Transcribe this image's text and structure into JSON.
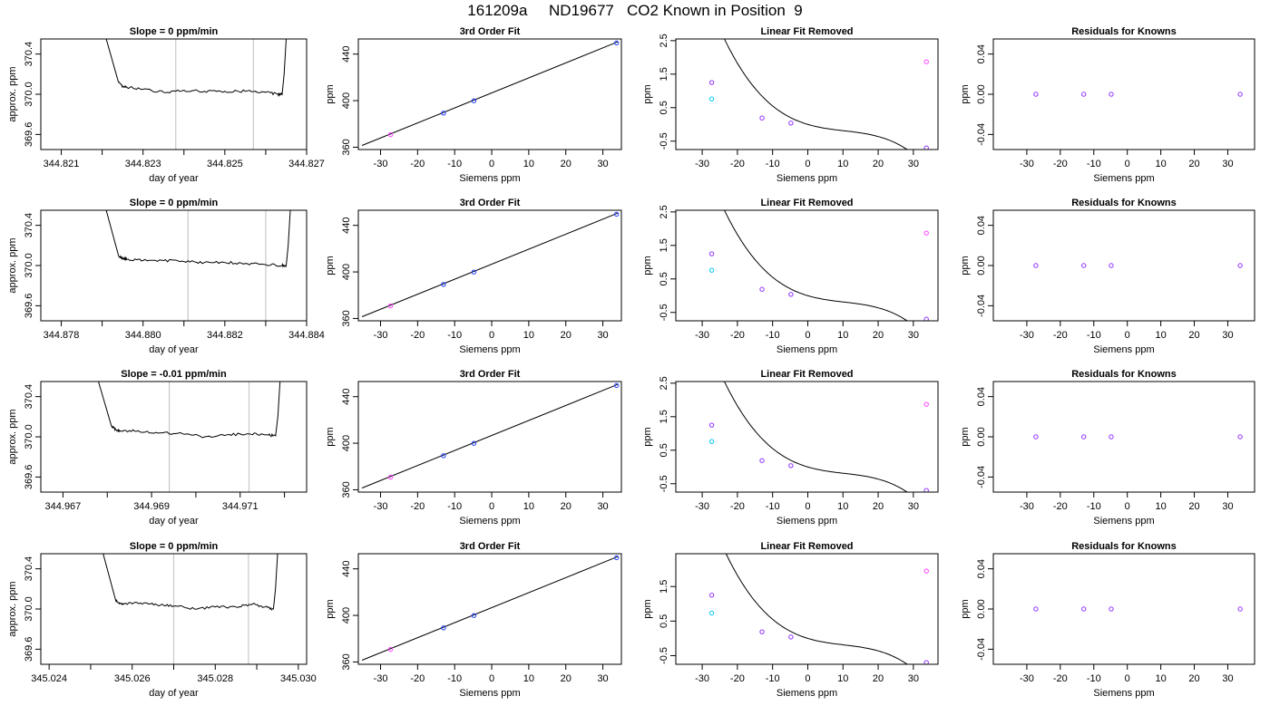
{
  "title": "161209a     ND19677   CO2 Known in Position  9",
  "colors": {
    "line": "#000000",
    "grid": "#c8c8c8",
    "blue": "#1f3fff",
    "cyan": "#00c8ff",
    "magenta": "#ff40ff",
    "purple": "#9030ff",
    "red": "#ff5050"
  },
  "chart_data": [
    {
      "row": 1,
      "panel": "trace",
      "type": "line",
      "title": "Slope =  0  ppm/min",
      "xlabel": "day of year",
      "ylabel": "approx. ppm",
      "xlim": [
        344.8205,
        344.827
      ],
      "ylim": [
        369.45,
        370.55
      ],
      "xticks": [
        "344.821",
        "344.823",
        "344.825",
        "344.827"
      ],
      "xtick_values": [
        344.821,
        344.823,
        344.825,
        344.827
      ],
      "minor_xticks": [
        344.822,
        344.824,
        344.826
      ],
      "yticks": [
        "369.6",
        "370.0",
        "370.4"
      ],
      "ytick_values": [
        369.6,
        370.0,
        370.4
      ],
      "vlines": [
        344.8238,
        344.8257
      ],
      "x": [
        344.8221,
        344.8224,
        344.8225,
        344.8226,
        344.823,
        344.8235,
        344.824,
        344.8245,
        344.825,
        344.8255,
        344.826,
        344.8263,
        344.8264,
        344.82645,
        344.8265
      ],
      "y": [
        370.55,
        370.12,
        370.08,
        370.07,
        370.05,
        370.02,
        370.04,
        370.03,
        370.03,
        370.03,
        370.02,
        370.0,
        370.0,
        370.2,
        370.55
      ]
    },
    {
      "row": 1,
      "panel": "fit",
      "type": "scatter",
      "title": "3rd Order Fit",
      "xlabel": "Siemens ppm",
      "ylabel": "ppm",
      "xlim": [
        -36,
        35
      ],
      "ylim": [
        358,
        453
      ],
      "xticks": [
        "-30",
        "-20",
        "-10",
        "0",
        "10",
        "20",
        "30"
      ],
      "xtick_values": [
        -30,
        -20,
        -10,
        0,
        10,
        20,
        30
      ],
      "yticks": [
        "360",
        "400",
        "440"
      ],
      "ytick_values": [
        360,
        400,
        440
      ],
      "line": {
        "x": [
          -35,
          34
        ],
        "y": [
          361.5,
          450.5
        ]
      },
      "points": [
        {
          "x": -27.3,
          "y": 370.8,
          "color": "magenta"
        },
        {
          "x": -13,
          "y": 389.3,
          "color": "blue"
        },
        {
          "x": -4.8,
          "y": 399.9,
          "color": "blue"
        },
        {
          "x": 33.7,
          "y": 449.6,
          "color": "blue"
        }
      ]
    },
    {
      "row": 1,
      "panel": "linear",
      "type": "scatter",
      "title": "Linear Fit Removed",
      "xlabel": "Siemens ppm",
      "ylabel": "ppm",
      "xlim": [
        -37.5,
        37
      ],
      "ylim": [
        -0.75,
        2.55
      ],
      "xticks": [
        "-30",
        "-20",
        "-10",
        "0",
        "10",
        "20",
        "30"
      ],
      "xtick_values": [
        -30,
        -20,
        -10,
        0,
        10,
        20,
        30
      ],
      "yticks": [
        "-0.5",
        "0.5",
        "1.5",
        "2.5"
      ],
      "ytick_values": [
        -0.5,
        0.5,
        1.5,
        2.5
      ],
      "curve": {
        "a": 0.0,
        "b": -0.031,
        "c": 0.00183,
        "d": -5.92e-05
      },
      "points": [
        {
          "x": -27.3,
          "y": 1.25,
          "color": "purple"
        },
        {
          "x": -27.3,
          "y": 0.76,
          "color": "cyan"
        },
        {
          "x": -13,
          "y": 0.19,
          "color": "purple"
        },
        {
          "x": -4.8,
          "y": 0.04,
          "color": "purple"
        },
        {
          "x": 33.7,
          "y": 1.87,
          "color": "magenta"
        },
        {
          "x": 33.7,
          "y": -0.7,
          "color": "purple"
        }
      ]
    },
    {
      "row": 1,
      "panel": "resid",
      "type": "scatter",
      "title": "Residuals for Knowns",
      "xlabel": "Siemens ppm",
      "ylabel": "ppm",
      "xlim": [
        -40,
        38
      ],
      "ylim": [
        -0.055,
        0.055
      ],
      "xticks": [
        "-30",
        "-20",
        "-10",
        "0",
        "10",
        "20",
        "30"
      ],
      "xtick_values": [
        -30,
        -20,
        -10,
        0,
        10,
        20,
        30
      ],
      "yticks": [
        "-0.04",
        "0.00",
        "0.04"
      ],
      "ytick_values": [
        -0.04,
        0.0,
        0.04
      ],
      "points": [
        {
          "x": -27.3,
          "y": 0,
          "color": "purple"
        },
        {
          "x": -13,
          "y": 0,
          "color": "purple"
        },
        {
          "x": -4.8,
          "y": 0,
          "color": "purple"
        },
        {
          "x": 33.7,
          "y": 0,
          "color": "purple"
        }
      ]
    },
    {
      "row": 2,
      "panel": "trace",
      "type": "line",
      "title": "Slope =  0  ppm/min",
      "xlabel": "day of year",
      "ylabel": "approx. ppm",
      "xlim": [
        344.8775,
        344.884
      ],
      "ylim": [
        369.45,
        370.55
      ],
      "xticks": [
        "344.878",
        "344.880",
        "344.882",
        "344.884"
      ],
      "xtick_values": [
        344.878,
        344.88,
        344.882,
        344.884
      ],
      "minor_xticks": [
        344.879,
        344.881,
        344.883
      ],
      "yticks": [
        "369.6",
        "370.0",
        "370.4"
      ],
      "ytick_values": [
        369.6,
        370.0,
        370.4
      ],
      "vlines": [
        344.8811,
        344.883
      ],
      "x": [
        344.8791,
        344.8794,
        344.8795,
        344.8796,
        344.88,
        344.8805,
        344.881,
        344.8815,
        344.882,
        344.8825,
        344.883,
        344.8834,
        344.8835,
        344.88355,
        344.8836
      ],
      "y": [
        370.55,
        370.1,
        370.07,
        370.06,
        370.05,
        370.05,
        370.04,
        370.03,
        370.03,
        370.02,
        370.01,
        370.0,
        370.0,
        370.2,
        370.55
      ]
    },
    {
      "row": 2,
      "panel": "fit",
      "type": "scatter",
      "title": "3rd Order Fit",
      "xlabel": "Siemens ppm",
      "ylabel": "ppm",
      "xlim": [
        -36,
        35
      ],
      "ylim": [
        358,
        453
      ],
      "xticks": [
        "-30",
        "-20",
        "-10",
        "0",
        "10",
        "20",
        "30"
      ],
      "xtick_values": [
        -30,
        -20,
        -10,
        0,
        10,
        20,
        30
      ],
      "yticks": [
        "360",
        "400",
        "440"
      ],
      "ytick_values": [
        360,
        400,
        440
      ],
      "line": {
        "x": [
          -35,
          34
        ],
        "y": [
          361.5,
          450.5
        ]
      },
      "points": [
        {
          "x": -27.3,
          "y": 370.8,
          "color": "magenta"
        },
        {
          "x": -13,
          "y": 389.3,
          "color": "blue"
        },
        {
          "x": -4.8,
          "y": 399.9,
          "color": "blue"
        },
        {
          "x": 33.7,
          "y": 449.6,
          "color": "blue"
        }
      ]
    },
    {
      "row": 2,
      "panel": "linear",
      "type": "scatter",
      "title": "Linear Fit Removed",
      "xlabel": "Siemens ppm",
      "ylabel": "ppm",
      "xlim": [
        -37.5,
        37
      ],
      "ylim": [
        -0.75,
        2.55
      ],
      "xticks": [
        "-30",
        "-20",
        "-10",
        "0",
        "10",
        "20",
        "30"
      ],
      "xtick_values": [
        -30,
        -20,
        -10,
        0,
        10,
        20,
        30
      ],
      "yticks": [
        "-0.5",
        "0.5",
        "1.5",
        "2.5"
      ],
      "ytick_values": [
        -0.5,
        0.5,
        1.5,
        2.5
      ],
      "curve": {
        "a": 0.0,
        "b": -0.031,
        "c": 0.00183,
        "d": -5.92e-05
      },
      "points": [
        {
          "x": -27.3,
          "y": 1.25,
          "color": "purple"
        },
        {
          "x": -27.3,
          "y": 0.76,
          "color": "cyan"
        },
        {
          "x": -13,
          "y": 0.19,
          "color": "purple"
        },
        {
          "x": -4.8,
          "y": 0.04,
          "color": "purple"
        },
        {
          "x": 33.7,
          "y": 1.87,
          "color": "magenta"
        },
        {
          "x": 33.7,
          "y": -0.7,
          "color": "purple"
        }
      ]
    },
    {
      "row": 2,
      "panel": "resid",
      "type": "scatter",
      "title": "Residuals for Knowns",
      "xlabel": "Siemens ppm",
      "ylabel": "ppm",
      "xlim": [
        -40,
        38
      ],
      "ylim": [
        -0.055,
        0.055
      ],
      "xticks": [
        "-30",
        "-20",
        "-10",
        "0",
        "10",
        "20",
        "30"
      ],
      "xtick_values": [
        -30,
        -20,
        -10,
        0,
        10,
        20,
        30
      ],
      "yticks": [
        "-0.04",
        "0.00",
        "0.04"
      ],
      "ytick_values": [
        -0.04,
        0.0,
        0.04
      ],
      "points": [
        {
          "x": -27.3,
          "y": 0,
          "color": "purple"
        },
        {
          "x": -13,
          "y": 0,
          "color": "purple"
        },
        {
          "x": -4.8,
          "y": 0,
          "color": "purple"
        },
        {
          "x": 33.7,
          "y": 0,
          "color": "purple"
        }
      ]
    },
    {
      "row": 3,
      "panel": "trace",
      "type": "line",
      "title": "Slope =  -0.01  ppm/min",
      "xlabel": "day of year",
      "ylabel": "approx. ppm",
      "xlim": [
        344.9665,
        344.9725
      ],
      "ylim": [
        369.45,
        370.55
      ],
      "xticks": [
        "344.967",
        "344.969",
        "344.971"
      ],
      "xtick_values": [
        344.967,
        344.969,
        344.971
      ],
      "minor_xticks": [
        344.968,
        344.97,
        344.972
      ],
      "yticks": [
        "369.6",
        "370.0",
        "370.4"
      ],
      "ytick_values": [
        369.6,
        370.0,
        370.4
      ],
      "vlines": [
        344.9694,
        344.9712
      ],
      "x": [
        344.9678,
        344.9681,
        344.9682,
        344.9683,
        344.9687,
        344.9692,
        344.9697,
        344.9702,
        344.9707,
        344.9712,
        344.9716,
        344.9718,
        344.97185,
        344.9719
      ],
      "y": [
        370.55,
        370.1,
        370.07,
        370.06,
        370.06,
        370.04,
        370.03,
        370.0,
        370.02,
        370.03,
        370.02,
        370.01,
        370.2,
        370.55
      ]
    },
    {
      "row": 3,
      "panel": "fit",
      "type": "scatter",
      "title": "3rd Order Fit",
      "xlabel": "Siemens ppm",
      "ylabel": "ppm",
      "xlim": [
        -36,
        35
      ],
      "ylim": [
        358,
        453
      ],
      "xticks": [
        "-30",
        "-20",
        "-10",
        "0",
        "10",
        "20",
        "30"
      ],
      "xtick_values": [
        -30,
        -20,
        -10,
        0,
        10,
        20,
        30
      ],
      "yticks": [
        "360",
        "400",
        "440"
      ],
      "ytick_values": [
        360,
        400,
        440
      ],
      "line": {
        "x": [
          -35,
          34
        ],
        "y": [
          361.5,
          450.5
        ]
      },
      "points": [
        {
          "x": -27.3,
          "y": 370.8,
          "color": "magenta"
        },
        {
          "x": -13,
          "y": 389.3,
          "color": "blue"
        },
        {
          "x": -4.8,
          "y": 399.9,
          "color": "blue"
        },
        {
          "x": 33.7,
          "y": 449.6,
          "color": "blue"
        }
      ]
    },
    {
      "row": 3,
      "panel": "linear",
      "type": "scatter",
      "title": "Linear Fit Removed",
      "xlabel": "Siemens ppm",
      "ylabel": "ppm",
      "xlim": [
        -37.5,
        37
      ],
      "ylim": [
        -0.75,
        2.55
      ],
      "xticks": [
        "-30",
        "-20",
        "-10",
        "0",
        "10",
        "20",
        "30"
      ],
      "xtick_values": [
        -30,
        -20,
        -10,
        0,
        10,
        20,
        30
      ],
      "yticks": [
        "-0.5",
        "0.5",
        "1.5",
        "2.5"
      ],
      "ytick_values": [
        -0.5,
        0.5,
        1.5,
        2.5
      ],
      "curve": {
        "a": 0.0,
        "b": -0.031,
        "c": 0.00183,
        "d": -5.92e-05
      },
      "points": [
        {
          "x": -27.3,
          "y": 1.25,
          "color": "purple"
        },
        {
          "x": -27.3,
          "y": 0.76,
          "color": "cyan"
        },
        {
          "x": -13,
          "y": 0.19,
          "color": "purple"
        },
        {
          "x": -4.8,
          "y": 0.04,
          "color": "purple"
        },
        {
          "x": 33.7,
          "y": 1.87,
          "color": "magenta"
        },
        {
          "x": 33.7,
          "y": -0.7,
          "color": "purple"
        }
      ]
    },
    {
      "row": 3,
      "panel": "resid",
      "type": "scatter",
      "title": "Residuals for Knowns",
      "xlabel": "Siemens ppm",
      "ylabel": "ppm",
      "xlim": [
        -40,
        38
      ],
      "ylim": [
        -0.055,
        0.055
      ],
      "xticks": [
        "-30",
        "-20",
        "-10",
        "0",
        "10",
        "20",
        "30"
      ],
      "xtick_values": [
        -30,
        -20,
        -10,
        0,
        10,
        20,
        30
      ],
      "yticks": [
        "-0.04",
        "0.00",
        "0.04"
      ],
      "ytick_values": [
        -0.04,
        0.0,
        0.04
      ],
      "points": [
        {
          "x": -27.3,
          "y": 0,
          "color": "purple"
        },
        {
          "x": -13,
          "y": 0,
          "color": "purple"
        },
        {
          "x": -4.8,
          "y": 0,
          "color": "purple"
        },
        {
          "x": 33.7,
          "y": 0,
          "color": "purple"
        }
      ]
    },
    {
      "row": 4,
      "panel": "trace",
      "type": "line",
      "title": "Slope =  0  ppm/min",
      "xlabel": "day of year",
      "ylabel": "approx. ppm",
      "xlim": [
        345.0238,
        345.0302
      ],
      "ylim": [
        369.45,
        370.55
      ],
      "xticks": [
        "345.024",
        "345.026",
        "345.028",
        "345.030"
      ],
      "xtick_values": [
        345.024,
        345.026,
        345.028,
        345.03
      ],
      "minor_xticks": [
        345.025,
        345.027,
        345.029
      ],
      "yticks": [
        "369.6",
        "370.0",
        "370.4"
      ],
      "ytick_values": [
        369.6,
        370.0,
        370.4
      ],
      "vlines": [
        345.027,
        345.0288
      ],
      "x": [
        345.0253,
        345.0256,
        345.0257,
        345.0258,
        345.0262,
        345.0266,
        345.027,
        345.0275,
        345.028,
        345.0285,
        345.0289,
        345.0292,
        345.0294,
        345.02945,
        345.0295
      ],
      "y": [
        370.55,
        370.09,
        370.06,
        370.05,
        370.06,
        370.04,
        370.03,
        370.0,
        370.02,
        370.02,
        370.05,
        370.02,
        370.0,
        370.2,
        370.55
      ]
    },
    {
      "row": 4,
      "panel": "fit",
      "type": "scatter",
      "title": "3rd Order Fit",
      "xlabel": "Siemens ppm",
      "ylabel": "ppm",
      "xlim": [
        -36,
        35
      ],
      "ylim": [
        358,
        453
      ],
      "xticks": [
        "-30",
        "-20",
        "-10",
        "0",
        "10",
        "20",
        "30"
      ],
      "xtick_values": [
        -30,
        -20,
        -10,
        0,
        10,
        20,
        30
      ],
      "yticks": [
        "360",
        "400",
        "440"
      ],
      "ytick_values": [
        360,
        400,
        440
      ],
      "line": {
        "x": [
          -35,
          34
        ],
        "y": [
          361.5,
          450.5
        ]
      },
      "points": [
        {
          "x": -27.3,
          "y": 370.8,
          "color": "magenta"
        },
        {
          "x": -13,
          "y": 389.3,
          "color": "blue"
        },
        {
          "x": -4.8,
          "y": 399.9,
          "color": "blue"
        },
        {
          "x": 33.7,
          "y": 449.6,
          "color": "blue"
        }
      ]
    },
    {
      "row": 4,
      "panel": "linear",
      "type": "scatter",
      "title": "Linear Fit Removed",
      "xlabel": "Siemens ppm",
      "ylabel": "ppm",
      "xlim": [
        -37.5,
        37
      ],
      "ylim": [
        -0.75,
        2.45
      ],
      "xticks": [
        "-30",
        "-20",
        "-10",
        "0",
        "10",
        "20",
        "30"
      ],
      "xtick_values": [
        -30,
        -20,
        -10,
        0,
        10,
        20,
        30
      ],
      "yticks": [
        "-0.5",
        "0.5",
        "1.5"
      ],
      "ytick_values": [
        -0.5,
        0.5,
        1.5
      ],
      "curve": {
        "a": 0.0,
        "b": -0.031,
        "c": 0.00183,
        "d": -5.92e-05
      },
      "points": [
        {
          "x": -27.3,
          "y": 1.25,
          "color": "purple"
        },
        {
          "x": -27.3,
          "y": 0.73,
          "color": "cyan"
        },
        {
          "x": -13,
          "y": 0.19,
          "color": "purple"
        },
        {
          "x": -4.8,
          "y": 0.04,
          "color": "purple"
        },
        {
          "x": 33.7,
          "y": 1.95,
          "color": "magenta"
        },
        {
          "x": 33.7,
          "y": -0.7,
          "color": "purple"
        }
      ]
    },
    {
      "row": 4,
      "panel": "resid",
      "type": "scatter",
      "title": "Residuals for Knowns",
      "xlabel": "Siemens ppm",
      "ylabel": "ppm",
      "xlim": [
        -40,
        38
      ],
      "ylim": [
        -0.055,
        0.055
      ],
      "xticks": [
        "-30",
        "-20",
        "-10",
        "0",
        "10",
        "20",
        "30"
      ],
      "xtick_values": [
        -30,
        -20,
        -10,
        0,
        10,
        20,
        30
      ],
      "yticks": [
        "-0.04",
        "0.00",
        "0.04"
      ],
      "ytick_values": [
        -0.04,
        0.0,
        0.04
      ],
      "points": [
        {
          "x": -27.3,
          "y": 0,
          "color": "purple"
        },
        {
          "x": -13,
          "y": 0,
          "color": "purple"
        },
        {
          "x": -4.8,
          "y": 0,
          "color": "purple"
        },
        {
          "x": 33.7,
          "y": 0,
          "color": "purple"
        }
      ]
    }
  ]
}
